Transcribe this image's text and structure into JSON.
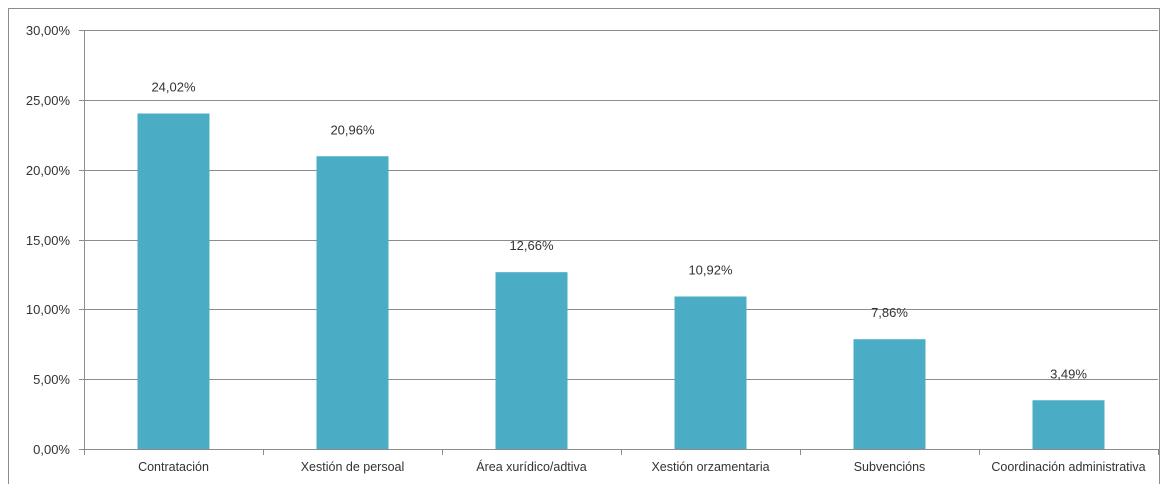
{
  "chart_data": {
    "type": "bar",
    "categories": [
      "Contratación",
      "Xestión de persoal",
      "Área xurídico/adtiva",
      "Xestión orzamentaria",
      "Subvencións",
      "Coordinación administrativa"
    ],
    "values": [
      24.02,
      20.96,
      12.66,
      10.92,
      7.86,
      3.49
    ],
    "data_labels": [
      "24,02%",
      "20,96%",
      "12,66%",
      "10,92%",
      "7,86%",
      "3,49%"
    ],
    "y_ticks": [
      0,
      5,
      10,
      15,
      20,
      25,
      30
    ],
    "y_tick_labels": [
      "0,00%",
      "5,00%",
      "10,00%",
      "15,00%",
      "20,00%",
      "25,00%",
      "30,00%"
    ],
    "ylim": [
      0,
      30
    ],
    "grid": true,
    "legend": "none",
    "bar_color": "#4bacc6",
    "gridline_color": "#8c8c8c"
  }
}
